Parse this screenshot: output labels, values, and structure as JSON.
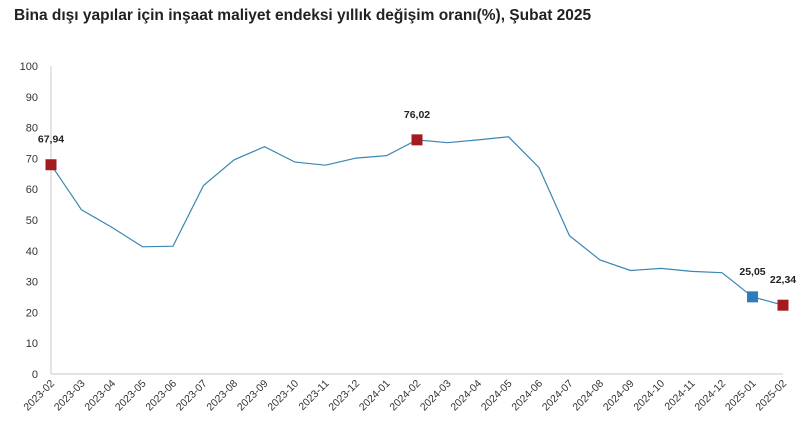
{
  "page": {
    "title": "Bina dışı yapılar için inşaat maliyet endeksi yıllık değişim oranı(%), Şubat 2025"
  },
  "colors": {
    "line": "#3a86b4",
    "marker_red": "#a31a1f",
    "marker_blue": "#2e7bbd",
    "axis": "#c8c8c8"
  },
  "chart_data": {
    "type": "line",
    "title": "Bina dışı yapılar için inşaat maliyet endeksi yıllık değişim oranı(%), Şubat 2025",
    "xlabel": "",
    "ylabel": "",
    "ylim": [
      0,
      100
    ],
    "yticks": [
      0,
      10,
      20,
      30,
      40,
      50,
      60,
      70,
      80,
      90,
      100
    ],
    "grid": false,
    "categories": [
      "2023-02",
      "2023-03",
      "2023-04",
      "2023-05",
      "2023-06",
      "2023-07",
      "2023-08",
      "2023-09",
      "2023-10",
      "2023-11",
      "2023-12",
      "2024-01",
      "2024-02",
      "2024-03",
      "2024-04",
      "2024-05",
      "2024-06",
      "2024-07",
      "2024-08",
      "2024-09",
      "2024-10",
      "2024-11",
      "2024-12",
      "2025-01",
      "2025-02"
    ],
    "series": [
      {
        "values": [
          67.94,
          53.3,
          47.6,
          41.3,
          41.5,
          61.2,
          69.5,
          73.8,
          68.8,
          67.8,
          70.1,
          70.9,
          76.02,
          75.1,
          76.0,
          77.0,
          67.0,
          44.9,
          37.0,
          33.6,
          34.3,
          33.3,
          32.9,
          25.05,
          22.34
        ]
      }
    ],
    "highlights": [
      {
        "index": 0,
        "label": "67,94",
        "color": "#a31a1f"
      },
      {
        "index": 12,
        "label": "76,02",
        "color": "#a31a1f"
      },
      {
        "index": 23,
        "label": "25,05",
        "color": "#2e7bbd"
      },
      {
        "index": 24,
        "label": "22,34",
        "color": "#a31a1f"
      }
    ]
  }
}
